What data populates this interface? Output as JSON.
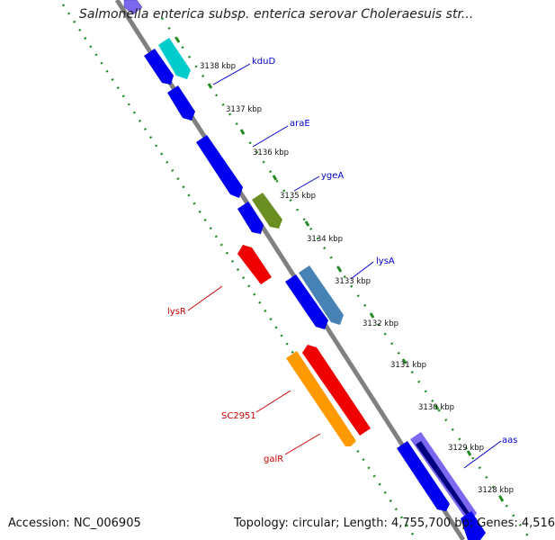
{
  "title": "Salmonella enterica subsp. enterica serovar Choleraesuis str...",
  "footer": {
    "accession": "Accession: NC_006905",
    "topology": "Topology: circular; Length: 4,755,700 bp; Genes: 4,516"
  },
  "colors": {
    "backbone": "#808080",
    "ruler": "#228B22",
    "forward_label": "#0000CC",
    "reverse_label": "#CC0000",
    "blue": "#0000EE",
    "cyan": "#00CCCC",
    "olive": "#6B8E23",
    "steel": "#4682B4",
    "red": "#EE0000",
    "orange": "#FF9900",
    "slate": "#7B68EE",
    "navy": "#000080"
  },
  "ticks": [
    {
      "label": "3138 kbp"
    },
    {
      "label": "3137 kbp"
    },
    {
      "label": "3136 kbp"
    },
    {
      "label": "3135 kbp"
    },
    {
      "label": "3134 kbp"
    },
    {
      "label": "3133 kbp"
    },
    {
      "label": "3132 kbp"
    },
    {
      "label": "3131 kbp"
    },
    {
      "label": "3130 kbp"
    },
    {
      "label": "3129 kbp"
    },
    {
      "label": "3128 kbp"
    }
  ],
  "gene_labels": [
    {
      "name": "kduD",
      "strand": "forward"
    },
    {
      "name": "araE",
      "strand": "forward"
    },
    {
      "name": "ygeA",
      "strand": "forward"
    },
    {
      "name": "lysA",
      "strand": "forward"
    },
    {
      "name": "aas",
      "strand": "forward"
    },
    {
      "name": "lysR",
      "strand": "reverse"
    },
    {
      "name": "SC2951",
      "strand": "reverse"
    },
    {
      "name": "galR",
      "strand": "reverse"
    }
  ]
}
